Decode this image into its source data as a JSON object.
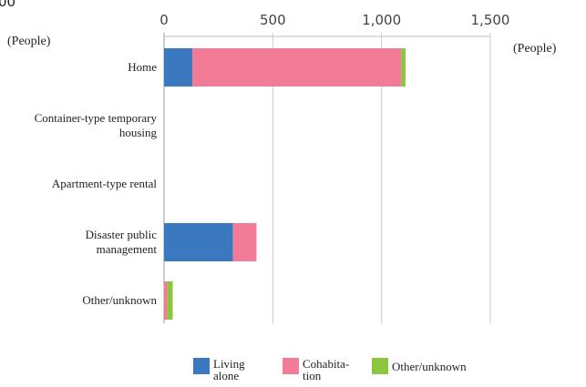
{
  "chart_data": {
    "type": "stacked_barh",
    "annotation": "00",
    "x_unit_label": "(People)",
    "y_unit_label": "(People)",
    "categories": [
      "Home",
      "Container-type temporary housing",
      "Apartment-type rental",
      "Disaster public management",
      "Other/unknown"
    ],
    "series": [
      {
        "name": "Living alone",
        "color": "#3a78c0",
        "values": [
          130,
          0,
          0,
          317,
          0
        ]
      },
      {
        "name": "Cohabita-tion",
        "color": "#f27b98",
        "values": [
          960,
          0,
          0,
          108,
          15
        ]
      },
      {
        "name": "Other/unknown",
        "color": "#8cc63f",
        "values": [
          20,
          0,
          0,
          0,
          25
        ]
      }
    ],
    "xlim": [
      0,
      1500
    ],
    "xticks": [
      0,
      500,
      {
        "value": 1000,
        "label": "1,000"
      },
      {
        "value": 1500,
        "label": "1,500"
      }
    ],
    "grid": true
  }
}
